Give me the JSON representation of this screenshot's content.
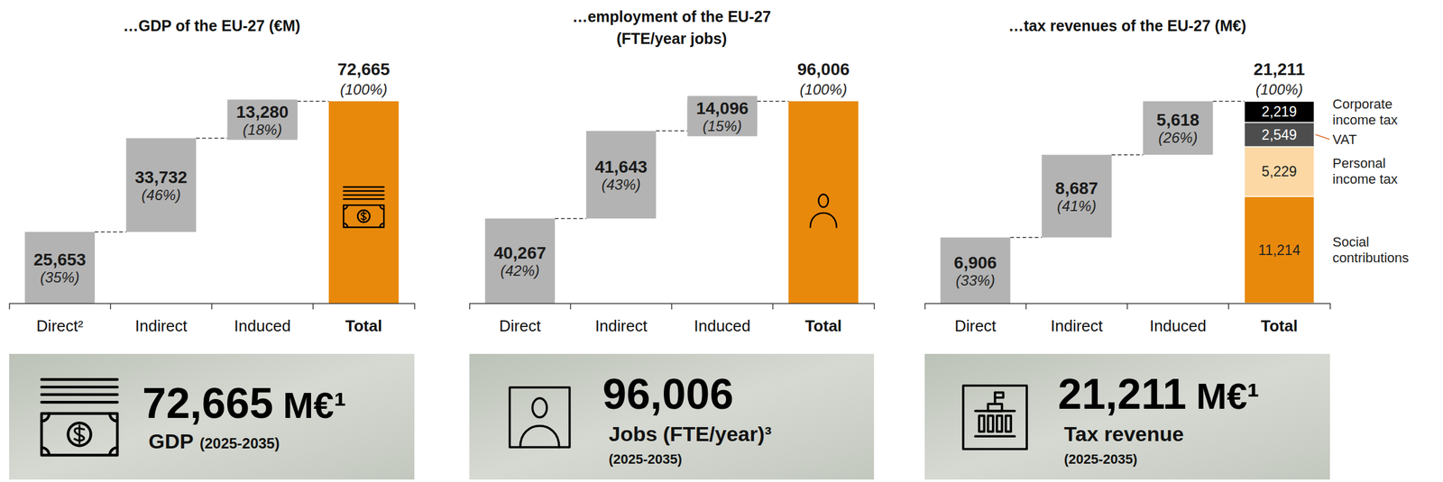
{
  "chart_data": [
    {
      "type": "waterfall",
      "title": "…GDP of the EU-27 (€M)",
      "categories": [
        "Direct²",
        "Indirect",
        "Induced",
        "Total"
      ],
      "values": [
        25653,
        33732,
        13280,
        72665
      ],
      "value_labels": [
        "25,653",
        "33,732",
        "13,280",
        "72,665"
      ],
      "shares": [
        35,
        46,
        18,
        100
      ],
      "share_labels": [
        "(35%)",
        "(46%)",
        "(18%)",
        "(100%)"
      ],
      "colors": [
        "#b3b3b3",
        "#b3b3b3",
        "#b3b3b3",
        "#e8890c"
      ],
      "data_labels": true,
      "tick_labels": "x"
    },
    {
      "type": "waterfall",
      "title": "…employment of the EU-27",
      "subtitle": "(FTE/year jobs)",
      "categories": [
        "Direct",
        "Indirect",
        "Induced",
        "Total"
      ],
      "values": [
        40267,
        41643,
        14096,
        96006
      ],
      "value_labels": [
        "40,267",
        "41,643",
        "14,096",
        "96,006"
      ],
      "shares": [
        42,
        43,
        15,
        100
      ],
      "share_labels": [
        "(42%)",
        "(43%)",
        "(15%)",
        "(100%)"
      ],
      "colors": [
        "#b3b3b3",
        "#b3b3b3",
        "#b3b3b3",
        "#e8890c"
      ],
      "data_labels": true,
      "tick_labels": "x"
    },
    {
      "type": "waterfall",
      "title": "…tax revenues of the EU-27 (M€)",
      "categories": [
        "Direct",
        "Indirect",
        "Induced",
        "Total"
      ],
      "values": [
        6906,
        8687,
        5618,
        21211
      ],
      "value_labels": [
        "6,906",
        "8,687",
        "5,618",
        "21,211"
      ],
      "shares": [
        33,
        41,
        26,
        100
      ],
      "share_labels": [
        "(33%)",
        "(41%)",
        "(26%)",
        "(100%)"
      ],
      "colors": [
        "#b3b3b3",
        "#b3b3b3",
        "#b3b3b3",
        "#e8890c"
      ],
      "data_labels": true,
      "tick_labels": "x",
      "breakdown": {
        "stacked": true,
        "legend": "right",
        "series": [
          {
            "name": "Social contributions",
            "color": "#e8890c",
            "values": [
              11214
            ],
            "value_labels": [
              "11,214"
            ]
          },
          {
            "name": "Personal income tax",
            "color": "#fcd8a4",
            "values": [
              5229
            ],
            "value_labels": [
              "5,229"
            ]
          },
          {
            "name": "VAT",
            "color": "#4d4d4d",
            "values": [
              2549
            ],
            "value_labels": [
              "2,549"
            ]
          },
          {
            "name": "Corporate income tax",
            "color": "#000000",
            "values": [
              2219
            ],
            "value_labels": [
              "2,219"
            ]
          }
        ]
      }
    }
  ],
  "banners": [
    {
      "value": "72,665",
      "unit": "M€¹",
      "label": "GDP",
      "period": "(2025-2035)"
    },
    {
      "value": "96,006",
      "label": "Jobs (FTE/year)³",
      "period": "(2025-2035)"
    },
    {
      "value": "21,211",
      "unit": "M€¹",
      "label": "Tax revenue",
      "period": "(2025-2035)"
    }
  ]
}
